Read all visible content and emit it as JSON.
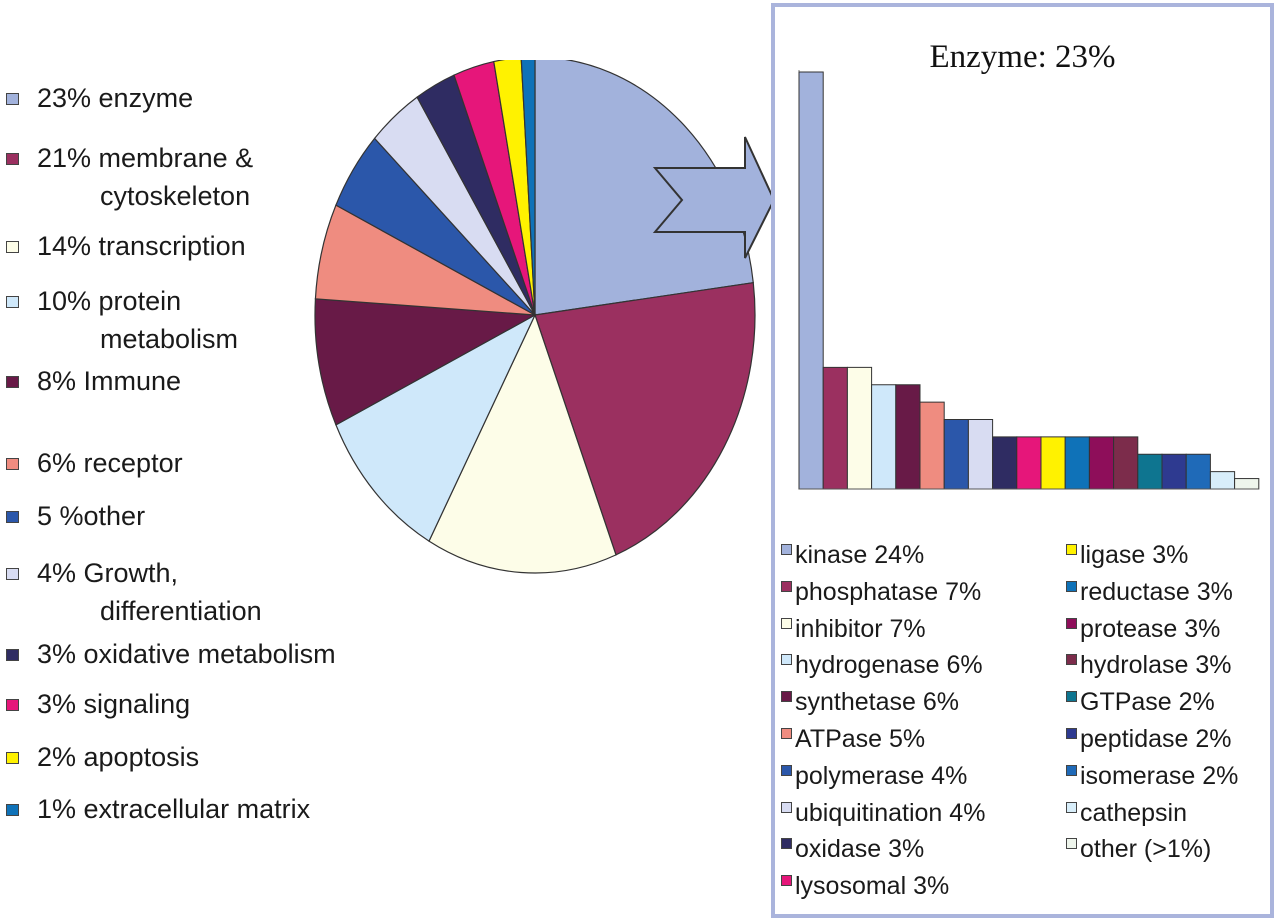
{
  "chart_data": [
    {
      "type": "pie",
      "slices": [
        {
          "label": "23% enzyme",
          "label_cont": "",
          "value": 23,
          "color": "#a2b2dc"
        },
        {
          "label": "21% membrane &",
          "label_cont": "cytoskeleton",
          "value": 21,
          "color": "#9b3060"
        },
        {
          "label": "14% transcription",
          "label_cont": "",
          "value": 14,
          "color": "#fdfde8"
        },
        {
          "label": "10% protein",
          "label_cont": "metabolism",
          "value": 10,
          "color": "#cfe8fa"
        },
        {
          "label": "8% Immune",
          "label_cont": "",
          "value": 8,
          "color": "#681a47"
        },
        {
          "label": "6% receptor",
          "label_cont": "",
          "value": 6,
          "color": "#ef8c80"
        },
        {
          "label": "5 %other",
          "label_cont": "",
          "value": 5,
          "color": "#2b57aa"
        },
        {
          "label": "4% Growth,",
          "label_cont": "differentiation",
          "value": 4,
          "color": "#d8dcf2"
        },
        {
          "label": "3% oxidative metabolism",
          "label_cont": "",
          "value": 3,
          "color": "#2f2c62"
        },
        {
          "label": "3% signaling",
          "label_cont": "",
          "value": 3,
          "color": "#e6167a"
        },
        {
          "label": "2% apoptosis",
          "label_cont": "",
          "value": 2,
          "color": "#fff200"
        },
        {
          "label": "1% extracellular matrix",
          "label_cont": "",
          "value": 1,
          "color": "#0f72b8"
        }
      ]
    },
    {
      "type": "bar",
      "title": "Enzyme: 23%",
      "categories": [
        "kinase 24%",
        "phosphatase 7%",
        "inhibitor 7%",
        "hydrogenase 6%",
        "synthetase 6%",
        "ATPase 5%",
        "polymerase 4%",
        "ubiquitination 4%",
        "oxidase 3%",
        "lysosomal 3%",
        "ligase 3%",
        "reductase 3%",
        "protease 3%",
        "hydrolase 3%",
        "GTPase 2%",
        "peptidase 2%",
        "isomerase 2%",
        "cathepsin",
        "other (>1%)"
      ],
      "values": [
        24,
        7,
        7,
        6,
        6,
        5,
        4,
        4,
        3,
        3,
        3,
        3,
        3,
        3,
        2,
        2,
        2,
        1,
        0.6
      ],
      "colors": [
        "#a2b2dc",
        "#9b3060",
        "#fdfde8",
        "#cfe8fa",
        "#681a47",
        "#ef8c80",
        "#2b57aa",
        "#d8dcf2",
        "#2f2c62",
        "#e6167a",
        "#fff200",
        "#0f72b8",
        "#8e0e5a",
        "#7c2c4b",
        "#0e7590",
        "#2e3a90",
        "#1f6ab8",
        "#d8eefa",
        "#eef5ec"
      ],
      "ylim": [
        0,
        24
      ],
      "grid": false
    }
  ]
}
